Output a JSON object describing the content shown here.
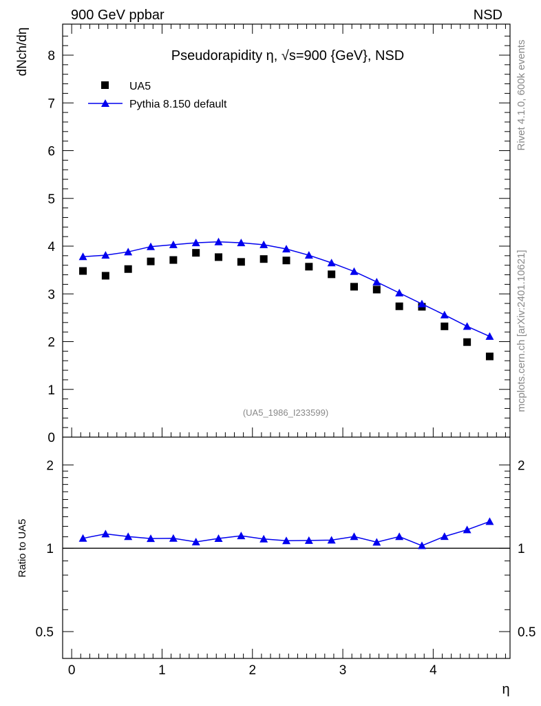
{
  "header": {
    "left": "900 GeV ppbar",
    "right": "NSD"
  },
  "side": {
    "rivet": "Rivet 4.1.0,  600k events",
    "mcplots": "mcplots.cern.ch [arXiv:2401.10621]"
  },
  "chart_data": {
    "type": "scatter",
    "title": "Pseudorapidity η, √s=900 {GeV}, NSD",
    "analysis_label": "(UA5_1986_I233599)",
    "xlabel": "η",
    "ylabel": "dNch/dη",
    "ratio_ylabel": "Ratio to UA5",
    "xlim": [
      -0.1,
      4.85
    ],
    "ylim": [
      0,
      8.65
    ],
    "ratio_ylim": [
      0.4,
      2.52
    ],
    "ratio_scale": "log",
    "x_ticks": [
      "0",
      "1",
      "2",
      "3",
      "4"
    ],
    "y_ticks": [
      "0",
      "1",
      "2",
      "3",
      "4",
      "5",
      "6",
      "7",
      "8"
    ],
    "ratio_ticks": [
      "0.5",
      "1",
      "2"
    ],
    "legend": {
      "position": "top-left",
      "entries": [
        "UA5",
        "Pythia 8.150 default"
      ]
    },
    "x": [
      0.125,
      0.375,
      0.625,
      0.875,
      1.125,
      1.375,
      1.625,
      1.875,
      2.125,
      2.375,
      2.625,
      2.875,
      3.125,
      3.375,
      3.625,
      3.875,
      4.125,
      4.375,
      4.625
    ],
    "series": [
      {
        "name": "UA5",
        "color": "#000000",
        "marker": "square",
        "values": [
          3.48,
          3.38,
          3.52,
          3.68,
          3.71,
          3.86,
          3.77,
          3.67,
          3.73,
          3.7,
          3.57,
          3.41,
          3.15,
          3.09,
          2.74,
          2.73,
          2.32,
          1.99,
          1.69
        ]
      },
      {
        "name": "Pythia 8.150 default",
        "color": "#0000ee",
        "marker": "triangle",
        "values": [
          3.78,
          3.81,
          3.88,
          3.99,
          4.03,
          4.07,
          4.09,
          4.07,
          4.03,
          3.94,
          3.81,
          3.65,
          3.47,
          3.25,
          3.02,
          2.79,
          2.56,
          2.32,
          2.11
        ],
        "ratio": [
          1.086,
          1.127,
          1.102,
          1.084,
          1.086,
          1.054,
          1.085,
          1.109,
          1.08,
          1.065,
          1.067,
          1.07,
          1.102,
          1.052,
          1.102,
          1.022,
          1.103,
          1.166,
          1.249
        ]
      }
    ]
  }
}
